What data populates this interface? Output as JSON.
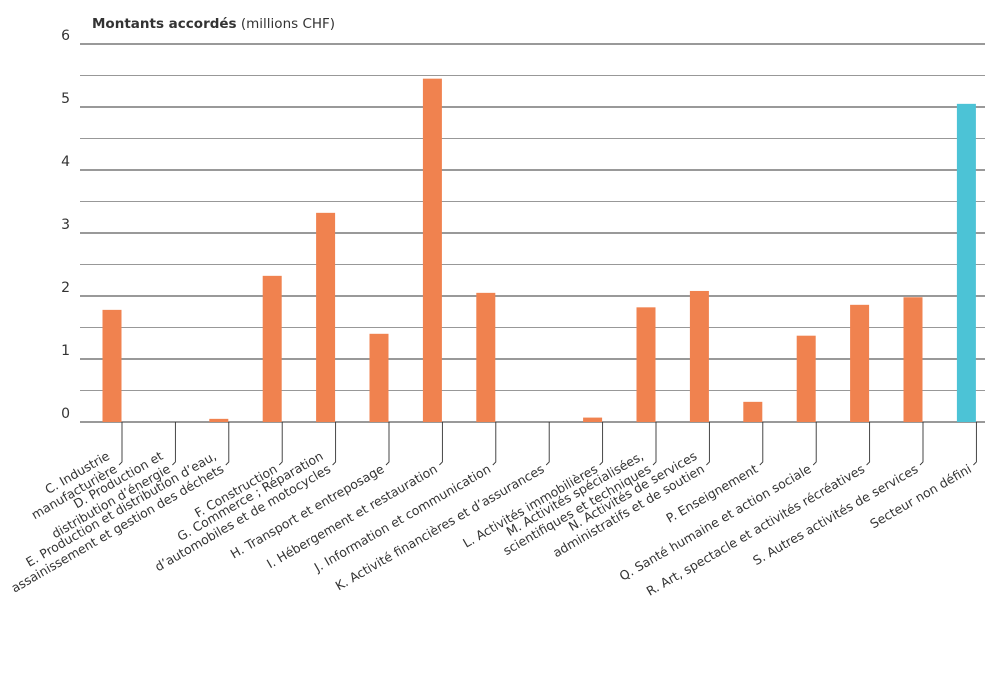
{
  "chart_data": {
    "type": "bar",
    "title_bold": "Montants accordés",
    "title_rest": " (millions CHF)",
    "xlabel": "",
    "ylabel": "",
    "ylim": [
      0,
      6
    ],
    "yticks": [
      0,
      1,
      2,
      3,
      4,
      5,
      6
    ],
    "grid": true,
    "categories": [
      [
        "C. Industrie",
        "manufacturière"
      ],
      [
        "D. Production et",
        "distribution d’énergie"
      ],
      [
        "E. Production et distribution d’eau,",
        "assainissement et gestion des déchets"
      ],
      [
        "F. Construction"
      ],
      [
        "G. Commerce ; Réparation",
        "d’automobiles et de motocycles"
      ],
      [
        "H. Transport et entreposage"
      ],
      [
        "I. Hébergement et restauration"
      ],
      [
        "J. Information et communication"
      ],
      [
        "K. Activité financières et d’assurances"
      ],
      [
        "L. Activités immobilières"
      ],
      [
        "M. Activités spécialisées,",
        "scientifiques et techniques"
      ],
      [
        "N. Activités de services",
        "administratifs et de soutien"
      ],
      [
        "P. Enseignement"
      ],
      [
        "Q. Santé humaine et action sociale"
      ],
      [
        "R. Art, spectacle et activités récréatives"
      ],
      [
        "S. Autres activités de services"
      ],
      [
        "Secteur non défini"
      ]
    ],
    "values": [
      1.78,
      0,
      0.05,
      2.32,
      3.32,
      1.4,
      5.45,
      2.05,
      0,
      0.07,
      1.82,
      2.08,
      0.32,
      1.37,
      1.86,
      1.98,
      5.05
    ],
    "colors": {
      "bar": "#f0824f",
      "highlight": "#4cc3d6",
      "grid": "#333333",
      "text": "#333333"
    },
    "highlight_index": 16
  }
}
